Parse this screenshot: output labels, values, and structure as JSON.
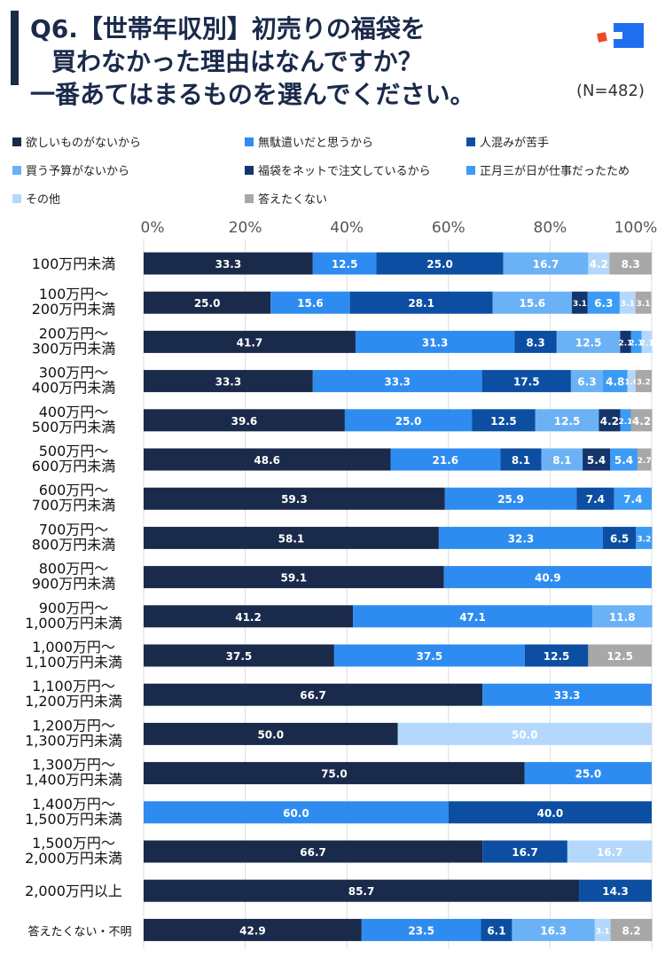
{
  "title": {
    "lines": [
      "Q6.【世帯年収別】初売りの福袋を",
      "買わなかった理由はなんですか？",
      "一番あてはまるものを選んでください。"
    ],
    "n_label": "(N=482)"
  },
  "logo": {
    "icon": "brand-logo-icon",
    "colors": [
      "#1e6ff0",
      "#f04a23"
    ]
  },
  "chart_data": {
    "type": "bar",
    "orientation": "horizontal",
    "stacked": true,
    "percent": true,
    "xlim": [
      0,
      100
    ],
    "xticks": [
      "0%",
      "20%",
      "40%",
      "60%",
      "80%",
      "100%"
    ],
    "grid": true,
    "legend_position": "top",
    "categories": [
      [
        "100万円未満"
      ],
      [
        "100万円〜",
        "200万円未満"
      ],
      [
        "200万円〜",
        "300万円未満"
      ],
      [
        "300万円〜",
        "400万円未満"
      ],
      [
        "400万円〜",
        "500万円未満"
      ],
      [
        "500万円〜",
        "600万円未満"
      ],
      [
        "600万円〜",
        "700万円未満"
      ],
      [
        "700万円〜",
        "800万円未満"
      ],
      [
        "800万円〜",
        "900万円未満"
      ],
      [
        "900万円〜",
        "1,000万円未満"
      ],
      [
        "1,000万円〜",
        "1,100万円未満"
      ],
      [
        "1,100万円〜",
        "1,200万円未満"
      ],
      [
        "1,200万円〜",
        "1,300万円未満"
      ],
      [
        "1,300万円〜",
        "1,400万円未満"
      ],
      [
        "1,400万円〜",
        "1,500万円未満"
      ],
      [
        "1,500万円〜",
        "2,000万円未満"
      ],
      [
        "2,000万円以上"
      ],
      [
        "答えたくない・不明"
      ]
    ],
    "series": [
      {
        "name": "欲しいものがないから",
        "color": "#1a2a4a",
        "values": [
          33.3,
          25.0,
          41.7,
          33.3,
          39.6,
          48.6,
          59.3,
          58.1,
          59.1,
          41.2,
          37.5,
          66.7,
          50.0,
          75.0,
          0,
          66.7,
          85.7,
          42.9
        ]
      },
      {
        "name": "無駄遣いだと思うから",
        "color": "#2e8cf0",
        "values": [
          12.5,
          15.6,
          31.3,
          33.3,
          25.0,
          21.6,
          25.9,
          32.3,
          40.9,
          47.1,
          37.5,
          33.3,
          0,
          25.0,
          60.0,
          0,
          0,
          23.5
        ]
      },
      {
        "name": "人混みが苦手",
        "color": "#0c4ea2",
        "values": [
          25.0,
          28.1,
          8.3,
          17.5,
          12.5,
          8.1,
          7.4,
          6.5,
          0,
          0,
          12.5,
          0,
          0,
          0,
          40.0,
          16.7,
          14.3,
          6.1
        ]
      },
      {
        "name": "買う予算がないから",
        "color": "#6ab2f5",
        "values": [
          16.7,
          15.6,
          12.5,
          6.3,
          12.5,
          8.1,
          0,
          0,
          0,
          11.8,
          0,
          0,
          0,
          0,
          0,
          0,
          0,
          16.3
        ]
      },
      {
        "name": "福袋をネットで注文しているから",
        "color": "#14356b",
        "values": [
          0,
          3.1,
          2.1,
          0,
          4.2,
          5.4,
          0,
          0,
          0,
          0,
          0,
          0,
          0,
          0,
          0,
          0,
          0,
          0
        ]
      },
      {
        "name": "正月三が日が仕事だったため",
        "color": "#3c9bf5",
        "values": [
          0,
          6.3,
          2.1,
          4.8,
          2.1,
          5.4,
          7.4,
          3.2,
          0,
          0,
          0,
          0,
          0,
          0,
          0,
          0,
          0,
          0
        ]
      },
      {
        "name": "その他",
        "color": "#b3d8fb",
        "values": [
          4.2,
          3.1,
          2.1,
          1.6,
          0,
          0,
          0,
          0,
          0,
          0,
          0,
          0,
          50.0,
          0,
          0,
          16.7,
          0,
          3.1
        ]
      },
      {
        "name": "答えたくない",
        "color": "#a8a8a8",
        "values": [
          8.3,
          3.1,
          0,
          3.2,
          4.2,
          2.7,
          0,
          0,
          0,
          0,
          12.5,
          0,
          0,
          0,
          0,
          0,
          0,
          8.2
        ]
      }
    ],
    "data_labels": [
      [
        "33.3",
        "12.5",
        "25.0",
        "16.7",
        "",
        "",
        "4.2",
        "8.3"
      ],
      [
        "25.0",
        "15.6",
        "28.1",
        "15.6",
        "3.1",
        "6.3",
        "3.1",
        "3.1"
      ],
      [
        "41.7",
        "31.3",
        "8.3",
        "12.5",
        "2.1",
        "2.1",
        "2.1",
        ""
      ],
      [
        "33.3",
        "33.3",
        "17.5",
        "6.3",
        "",
        "4.8",
        "1.6",
        "3.2"
      ],
      [
        "39.6",
        "25.0",
        "12.5",
        "12.5",
        "4.2",
        "2.1",
        "",
        "4.2"
      ],
      [
        "48.6",
        "21.6",
        "8.1",
        "8.1",
        "5.4",
        "5.4",
        "",
        "2.7"
      ],
      [
        "59.3",
        "25.9",
        "7.4",
        "",
        "",
        "7.4",
        "",
        ""
      ],
      [
        "58.1",
        "32.3",
        "6.5",
        "",
        "",
        "3.2",
        "",
        ""
      ],
      [
        "59.1",
        "40.9",
        "",
        "",
        "",
        "",
        "",
        ""
      ],
      [
        "41.2",
        "47.1",
        "",
        "11.8",
        "",
        "",
        "",
        ""
      ],
      [
        "37.5",
        "37.5",
        "12.5",
        "",
        "",
        "",
        "",
        "12.5"
      ],
      [
        "66.7",
        "33.3",
        "",
        "",
        "",
        "",
        "",
        ""
      ],
      [
        "50.0",
        "",
        "",
        "",
        "",
        "",
        "50.0",
        ""
      ],
      [
        "75.0",
        "25.0",
        "",
        "",
        "",
        "",
        "",
        ""
      ],
      [
        "",
        "60.0",
        "40.0",
        "",
        "",
        "",
        "",
        ""
      ],
      [
        "66.7",
        "",
        "16.7",
        "",
        "",
        "",
        "16.7",
        ""
      ],
      [
        "85.7",
        "",
        "14.3",
        "",
        "",
        "",
        "",
        ""
      ],
      [
        "42.9",
        "23.5",
        "6.1",
        "16.3",
        "",
        "",
        "3.1",
        "8.2"
      ]
    ]
  }
}
